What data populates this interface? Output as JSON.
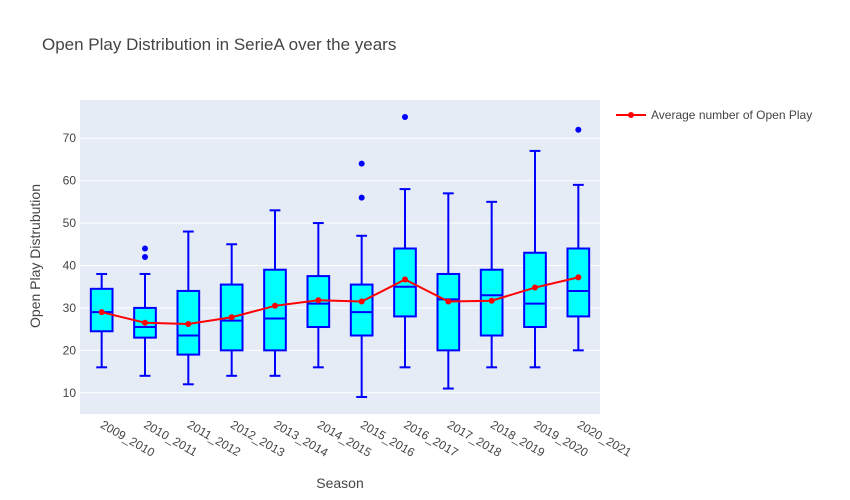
{
  "chart_data": {
    "type": "box",
    "title": "Open Play Distribution in SerieA over the years",
    "xlabel": "Season",
    "ylabel": "Open Play Distrubution",
    "ylim": [
      5,
      79
    ],
    "yticks": [
      10,
      20,
      30,
      40,
      50,
      60,
      70
    ],
    "grid": true,
    "legend_position": "top-right",
    "colors": {
      "plot_bg": "#e5ecf6",
      "grid": "#ffffff",
      "box_fill": "#00ffff",
      "box_line": "#0000ff",
      "line": "#ff0000"
    },
    "categories": [
      "2009_2010",
      "2010_2011",
      "2011_2012",
      "2012_2013",
      "2013_2014",
      "2014_2015",
      "2015_2016",
      "2016_2017",
      "2017_2018",
      "2018_2019",
      "2019_2020",
      "2020_2021"
    ],
    "boxes": [
      {
        "min": 16,
        "q1": 24.5,
        "median": 29,
        "q3": 34.5,
        "max": 38,
        "outliers": []
      },
      {
        "min": 14,
        "q1": 23,
        "median": 25.5,
        "q3": 30,
        "max": 38,
        "outliers": [
          42,
          44
        ]
      },
      {
        "min": 12,
        "q1": 19,
        "median": 23.5,
        "q3": 34,
        "max": 48,
        "outliers": []
      },
      {
        "min": 14,
        "q1": 20,
        "median": 27,
        "q3": 35.5,
        "max": 45,
        "outliers": []
      },
      {
        "min": 14,
        "q1": 20,
        "median": 27.5,
        "q3": 39,
        "max": 53,
        "outliers": []
      },
      {
        "min": 16,
        "q1": 25.5,
        "median": 31,
        "q3": 37.5,
        "max": 50,
        "outliers": []
      },
      {
        "min": 9,
        "q1": 23.5,
        "median": 29,
        "q3": 35.5,
        "max": 47,
        "outliers": [
          56,
          64
        ]
      },
      {
        "min": 16,
        "q1": 28,
        "median": 35,
        "q3": 44,
        "max": 58,
        "outliers": [
          75
        ]
      },
      {
        "min": 11,
        "q1": 20,
        "median": 32,
        "q3": 38,
        "max": 57,
        "outliers": []
      },
      {
        "min": 16,
        "q1": 23.5,
        "median": 33,
        "q3": 39,
        "max": 55,
        "outliers": []
      },
      {
        "min": 16,
        "q1": 25.5,
        "median": 31,
        "q3": 43,
        "max": 67,
        "outliers": []
      },
      {
        "min": 20,
        "q1": 28,
        "median": 34,
        "q3": 44,
        "max": 59,
        "outliers": [
          72
        ]
      }
    ],
    "series": [
      {
        "name": "Average number of Open Play",
        "type": "line",
        "values": [
          29.0,
          26.5,
          26.2,
          27.8,
          30.5,
          31.8,
          31.5,
          36.7,
          31.5,
          31.7,
          34.8,
          37.2
        ]
      }
    ]
  }
}
